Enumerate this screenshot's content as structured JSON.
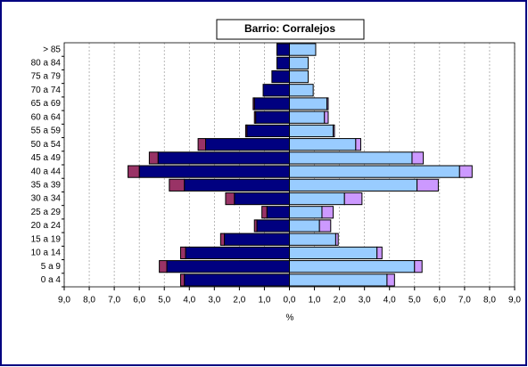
{
  "chart_data": {
    "type": "bar",
    "orientation": "horizontal",
    "stacked": true,
    "title": "Barrio: Corralejos",
    "xlabel": "%",
    "categories": [
      "0 a 4",
      "5 a 9",
      "10 a 14",
      "15 a 19",
      "20 a 24",
      "25 a 29",
      "30 a 34",
      "35 a 39",
      "40 a 44",
      "45 a 49",
      "50 a 54",
      "55 a 59",
      "60 a 64",
      "65 a 69",
      "70 a 74",
      "75 a 79",
      "80 a 84",
      "> 85"
    ],
    "series": [
      {
        "color": "#000080",
        "values": [
          -4.2,
          -4.9,
          -4.15,
          -2.6,
          -1.3,
          -0.9,
          -2.2,
          -4.2,
          -6.0,
          -5.25,
          -3.35,
          -1.7,
          -1.35,
          -1.4,
          -1.05,
          -0.7,
          -0.5,
          -0.5
        ]
      },
      {
        "color": "#993366",
        "values": [
          -0.15,
          -0.3,
          -0.2,
          -0.15,
          -0.1,
          -0.2,
          -0.35,
          -0.6,
          -0.45,
          -0.35,
          -0.3,
          -0.05,
          -0.05,
          -0.05,
          0,
          0,
          0,
          0
        ]
      },
      {
        "color": "#99ccff",
        "values": [
          3.9,
          5.0,
          3.5,
          1.85,
          1.2,
          1.3,
          2.2,
          5.1,
          6.8,
          4.9,
          2.65,
          1.75,
          1.4,
          1.5,
          0.95,
          0.75,
          0.75,
          1.05
        ]
      },
      {
        "color": "#cc99ff",
        "values": [
          0.3,
          0.3,
          0.2,
          0.1,
          0.45,
          0.45,
          0.7,
          0.85,
          0.5,
          0.45,
          0.2,
          0.05,
          0.15,
          0.05,
          0,
          0,
          0,
          0
        ]
      }
    ],
    "xlim": [
      -9,
      9
    ],
    "xticks": [
      {
        "value": -9,
        "label": "9,0"
      },
      {
        "value": -8,
        "label": "8,0"
      },
      {
        "value": -7,
        "label": "7,0"
      },
      {
        "value": -6,
        "label": "6,0"
      },
      {
        "value": -5,
        "label": "5,0"
      },
      {
        "value": -4,
        "label": "4,0"
      },
      {
        "value": -3,
        "label": "3,0"
      },
      {
        "value": -2,
        "label": "2,0"
      },
      {
        "value": -1,
        "label": "1,0"
      },
      {
        "value": 0,
        "label": "0,0"
      },
      {
        "value": 1,
        "label": "1,0"
      },
      {
        "value": 2,
        "label": "2,0"
      },
      {
        "value": 3,
        "label": "3,0"
      },
      {
        "value": 4,
        "label": "4,0"
      },
      {
        "value": 5,
        "label": "5,0"
      },
      {
        "value": 6,
        "label": "6,0"
      },
      {
        "value": 7,
        "label": "7,0"
      },
      {
        "value": 8,
        "label": "8,0"
      },
      {
        "value": 9,
        "label": "9,0"
      }
    ],
    "grid": true
  }
}
